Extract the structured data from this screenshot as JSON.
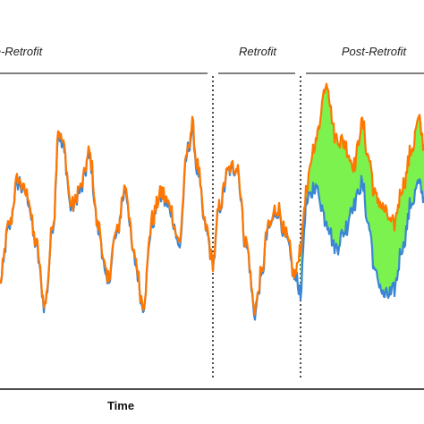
{
  "chart_data": {
    "type": "line",
    "xlabel": "Time",
    "ylabel": "",
    "grid": false,
    "phases": [
      {
        "label": "Pre-Retrofit",
        "x_start": 0,
        "x_end": 238
      },
      {
        "label": "Retrofit",
        "x_start": 238,
        "x_end": 336
      },
      {
        "label": "Post-Retrofit",
        "x_start": 336,
        "x_end": 474
      }
    ],
    "phase_boundaries": [
      238,
      336
    ],
    "ylim": [
      0,
      100
    ],
    "series": [
      {
        "color": "#ff7700",
        "x": [
          0,
          10,
          20,
          30,
          40,
          50,
          60,
          65,
          70,
          80,
          90,
          100,
          110,
          120,
          130,
          140,
          150,
          160,
          170,
          180,
          190,
          200,
          210,
          215,
          220,
          230,
          238,
          245,
          255,
          265,
          275,
          285,
          292,
          300,
          310,
          320,
          330,
          336,
          342,
          352,
          365,
          375,
          385,
          395,
          405,
          412,
          420,
          430,
          440,
          450,
          460,
          468,
          474
        ],
        "y": [
          28,
          48,
          65,
          60,
          42,
          20,
          50,
          83,
          78,
          55,
          62,
          74,
          47,
          28,
          45,
          62,
          37,
          20,
          50,
          60,
          55,
          42,
          76,
          84,
          70,
          48,
          35,
          55,
          68,
          70,
          42,
          18,
          30,
          48,
          55,
          44,
          30,
          40,
          60,
          78,
          100,
          80,
          78,
          70,
          85,
          73,
          58,
          53,
          48,
          62,
          75,
          86,
          78
        ]
      },
      {
        "color": "#3a86d4",
        "x": [
          0,
          10,
          20,
          30,
          40,
          50,
          60,
          65,
          70,
          80,
          90,
          100,
          110,
          120,
          130,
          140,
          150,
          160,
          170,
          180,
          190,
          200,
          210,
          215,
          220,
          230,
          238,
          245,
          255,
          265,
          275,
          285,
          292,
          300,
          310,
          320,
          330,
          336,
          342,
          352,
          365,
          375,
          385,
          395,
          405,
          412,
          420,
          430,
          440,
          450,
          460,
          468,
          474
        ],
        "y": [
          27,
          47,
          64,
          59,
          41,
          19,
          49,
          82,
          77,
          54,
          61,
          73,
          46,
          27,
          44,
          61,
          36,
          19,
          49,
          59,
          54,
          41,
          75,
          83,
          69,
          47,
          34,
          54,
          67,
          69,
          41,
          17,
          29,
          47,
          54,
          43,
          29,
          24,
          55,
          62,
          50,
          40,
          46,
          56,
          63,
          48,
          30,
          22,
          24,
          40,
          56,
          63,
          58
        ]
      }
    ],
    "fill_between": {
      "color": "#7cf24e",
      "x_start": 336
    }
  }
}
